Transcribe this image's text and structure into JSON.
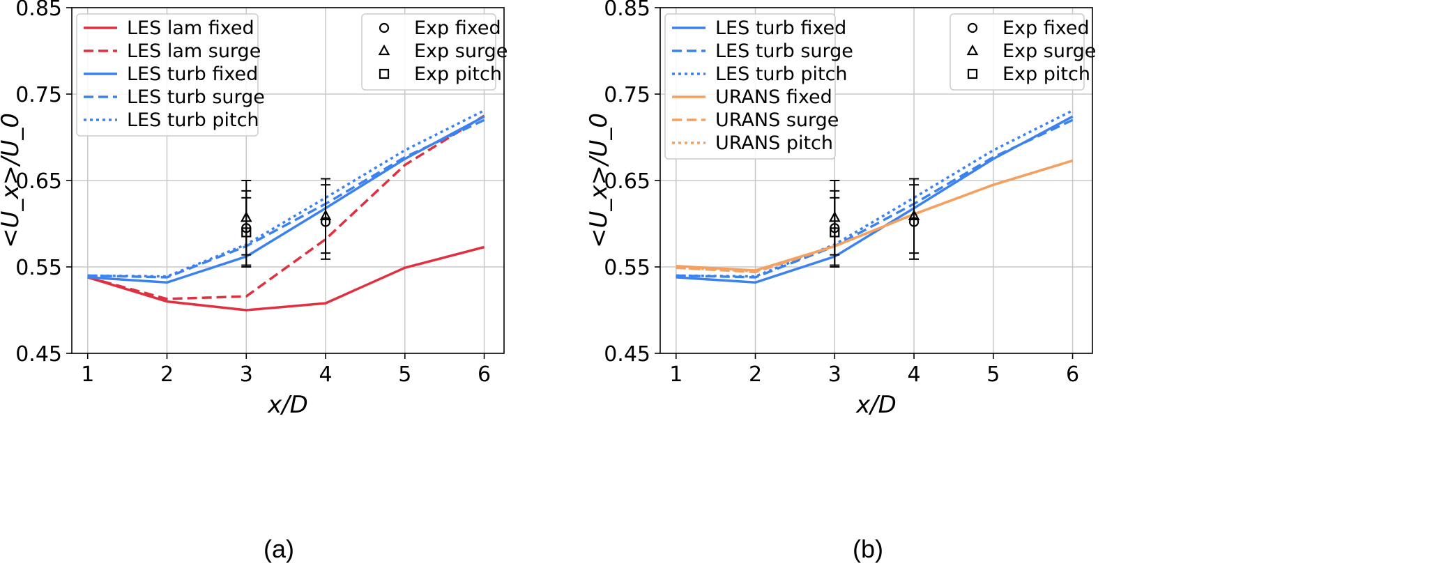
{
  "colors": {
    "lam": "#e03040",
    "turb": "#3c82ee",
    "urans": "#f4a060",
    "grid": "#c8c8c8",
    "exp": "#000000"
  },
  "chart_data": [
    {
      "type": "line",
      "caption": "(a)",
      "xlabel": "x/D",
      "ylabel": "<U_x>/U_0",
      "x": [
        1,
        2,
        3,
        4,
        5,
        6
      ],
      "xlim": [
        0.8,
        6.25
      ],
      "ylim": [
        0.45,
        0.85
      ],
      "xticks": [
        "1",
        "2",
        "3",
        "4",
        "5",
        "6"
      ],
      "yticks": [
        "0.45",
        "0.55",
        "0.65",
        "0.75",
        "0.85"
      ],
      "grid": true,
      "series": [
        {
          "name": "LES lam fixed",
          "color": "lam",
          "dash": "solid",
          "values": [
            0.538,
            0.51,
            0.5,
            0.508,
            0.549,
            0.573
          ]
        },
        {
          "name": "LES lam surge",
          "color": "lam",
          "dash": "dashed",
          "values": [
            0.538,
            0.513,
            0.516,
            0.582,
            0.668,
            0.725
          ]
        },
        {
          "name": "LES turb fixed",
          "color": "turb",
          "dash": "solid",
          "values": [
            0.538,
            0.532,
            0.562,
            0.618,
            0.675,
            0.724
          ]
        },
        {
          "name": "LES turb surge",
          "color": "turb",
          "dash": "dashed",
          "values": [
            0.54,
            0.538,
            0.574,
            0.623,
            0.677,
            0.72
          ]
        },
        {
          "name": "LES turb pitch",
          "color": "turb",
          "dash": "dotted",
          "values": [
            0.54,
            0.539,
            0.576,
            0.63,
            0.685,
            0.731
          ]
        }
      ],
      "experiments": [
        {
          "name": "Exp fixed",
          "marker": "circle",
          "points": [
            {
              "x": 3,
              "y": 0.595,
              "err": 0.043
            },
            {
              "x": 4,
              "y": 0.602,
              "err": 0.043
            }
          ]
        },
        {
          "name": "Exp surge",
          "marker": "triangle",
          "points": [
            {
              "x": 3,
              "y": 0.607,
              "err": 0.043
            },
            {
              "x": 4,
              "y": 0.609,
              "err": 0.043
            }
          ]
        },
        {
          "name": "Exp pitch",
          "marker": "square",
          "points": [
            {
              "x": 3,
              "y": 0.59,
              "err": 0.04
            }
          ]
        }
      ],
      "legend_lines": [
        "LES lam fixed",
        "LES lam surge",
        "LES turb fixed",
        "LES turb surge",
        "LES turb pitch"
      ],
      "legend_lines_position": "upper-left",
      "legend_markers": [
        "Exp fixed",
        "Exp surge",
        "Exp pitch"
      ],
      "legend_markers_position": "upper-right"
    },
    {
      "type": "line",
      "caption": "(b)",
      "xlabel": "x/D",
      "ylabel": "<U_x>/U_0",
      "x": [
        1,
        2,
        3,
        4,
        5,
        6
      ],
      "xlim": [
        0.8,
        6.25
      ],
      "ylim": [
        0.45,
        0.85
      ],
      "xticks": [
        "1",
        "2",
        "3",
        "4",
        "5",
        "6"
      ],
      "yticks": [
        "0.45",
        "0.55",
        "0.65",
        "0.75",
        "0.85"
      ],
      "grid": true,
      "series": [
        {
          "name": "LES turb fixed",
          "color": "turb",
          "dash": "solid",
          "values": [
            0.538,
            0.532,
            0.562,
            0.618,
            0.675,
            0.724
          ]
        },
        {
          "name": "LES turb surge",
          "color": "turb",
          "dash": "dashed",
          "values": [
            0.54,
            0.538,
            0.574,
            0.623,
            0.677,
            0.72
          ]
        },
        {
          "name": "LES turb pitch",
          "color": "turb",
          "dash": "dotted",
          "values": [
            0.54,
            0.539,
            0.576,
            0.63,
            0.685,
            0.731
          ]
        },
        {
          "name": "URANS fixed",
          "color": "urans",
          "dash": "solid",
          "values": [
            0.551,
            0.546,
            0.574,
            0.611,
            0.645,
            0.673
          ]
        },
        {
          "name": "URANS surge",
          "color": "urans",
          "dash": "dashed",
          "values": [
            0.549,
            0.544,
            0.574,
            0.611,
            0.645,
            0.673
          ]
        },
        {
          "name": "URANS pitch",
          "color": "urans",
          "dash": "dotted",
          "values": [
            0.549,
            0.545,
            0.574,
            0.611,
            0.645,
            0.673
          ]
        }
      ],
      "experiments": [
        {
          "name": "Exp fixed",
          "marker": "circle",
          "points": [
            {
              "x": 3,
              "y": 0.595,
              "err": 0.043
            },
            {
              "x": 4,
              "y": 0.602,
              "err": 0.043
            }
          ]
        },
        {
          "name": "Exp surge",
          "marker": "triangle",
          "points": [
            {
              "x": 3,
              "y": 0.607,
              "err": 0.043
            },
            {
              "x": 4,
              "y": 0.609,
              "err": 0.043
            }
          ]
        },
        {
          "name": "Exp pitch",
          "marker": "square",
          "points": [
            {
              "x": 3,
              "y": 0.59,
              "err": 0.04
            }
          ]
        }
      ],
      "legend_lines": [
        "LES turb fixed",
        "LES turb surge",
        "LES turb pitch",
        "URANS fixed",
        "URANS surge",
        "URANS pitch"
      ],
      "legend_lines_position": "upper-left",
      "legend_markers": [
        "Exp fixed",
        "Exp surge",
        "Exp pitch"
      ],
      "legend_markers_position": "upper-right"
    }
  ]
}
